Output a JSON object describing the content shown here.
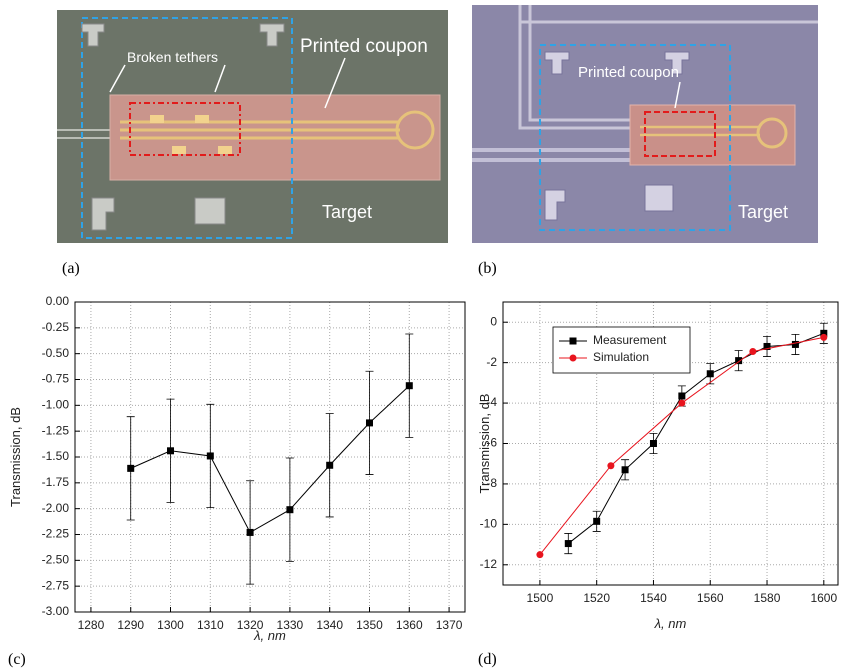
{
  "panels": {
    "a": {
      "label": "(a)",
      "annotations": [
        "Broken tethers",
        "Printed coupon",
        "Target"
      ]
    },
    "b": {
      "label": "(b)",
      "annotations": [
        "Printed coupon",
        "Target"
      ]
    },
    "c": {
      "label": "(c)"
    },
    "d": {
      "label": "(d)"
    }
  },
  "chart_data": [
    {
      "type": "line",
      "x_label": "λ, nm",
      "y_label": "Transmission, dB",
      "x": [
        1290,
        1300,
        1310,
        1320,
        1330,
        1340,
        1350,
        1360
      ],
      "values": [
        -1.61,
        -1.44,
        -1.49,
        -2.23,
        -2.01,
        -1.58,
        -1.17,
        -0.81
      ],
      "errors": [
        0.5,
        0.5,
        0.5,
        0.5,
        0.5,
        0.5,
        0.5,
        0.5
      ],
      "color": "#000000",
      "marker": "square",
      "xlim": [
        1276,
        1374
      ],
      "xticks": [
        1280,
        1290,
        1300,
        1310,
        1320,
        1330,
        1340,
        1350,
        1360,
        1370
      ],
      "ylim": [
        -3,
        0
      ],
      "yticks": [
        {
          "value": 0,
          "label": "0.00"
        },
        {
          "value": -0.25,
          "label": "-0.25"
        },
        {
          "value": -0.5,
          "label": "-0.50"
        },
        {
          "value": -0.75,
          "label": "-0.75"
        },
        {
          "value": -1,
          "label": "-1.00"
        },
        {
          "value": -1.25,
          "label": "-1.25"
        },
        {
          "value": -1.5,
          "label": "-1.50"
        },
        {
          "value": -1.75,
          "label": "-1.75"
        },
        {
          "value": -2,
          "label": "-2.00"
        },
        {
          "value": -2.25,
          "label": "-2.25"
        },
        {
          "value": -2.5,
          "label": "-2.50"
        },
        {
          "value": -2.75,
          "label": "-2.75"
        },
        {
          "value": -3,
          "label": "-3.00"
        }
      ],
      "grid": true
    },
    {
      "type": "line",
      "x_label": "λ, nm",
      "y_label": "Transmission, dB",
      "series": [
        {
          "name": "Measurement",
          "color": "#000000",
          "marker": "square",
          "x": [
            1510,
            1520,
            1530,
            1540,
            1550,
            1560,
            1570,
            1580,
            1590,
            1600
          ],
          "values": [
            -10.95,
            -9.85,
            -7.3,
            -6.0,
            -3.65,
            -2.55,
            -1.9,
            -1.2,
            -1.1,
            -0.55
          ],
          "errors": [
            0.5,
            0.5,
            0.5,
            0.5,
            0.5,
            0.5,
            0.5,
            0.5,
            0.5,
            0.5
          ]
        },
        {
          "name": "Simulation",
          "color": "#e8141e",
          "marker": "circle",
          "x": [
            1500,
            1525,
            1550,
            1575,
            1600
          ],
          "values": [
            -11.5,
            -7.1,
            -4.0,
            -1.45,
            -0.75
          ]
        }
      ],
      "xlim": [
        1487,
        1605
      ],
      "xticks": [
        1500,
        1520,
        1540,
        1560,
        1580,
        1600
      ],
      "ylim": [
        -13,
        1
      ],
      "yticks": [
        0,
        -2,
        -4,
        -6,
        -8,
        -10,
        -12
      ],
      "grid": true,
      "legend": "upper-left"
    }
  ]
}
